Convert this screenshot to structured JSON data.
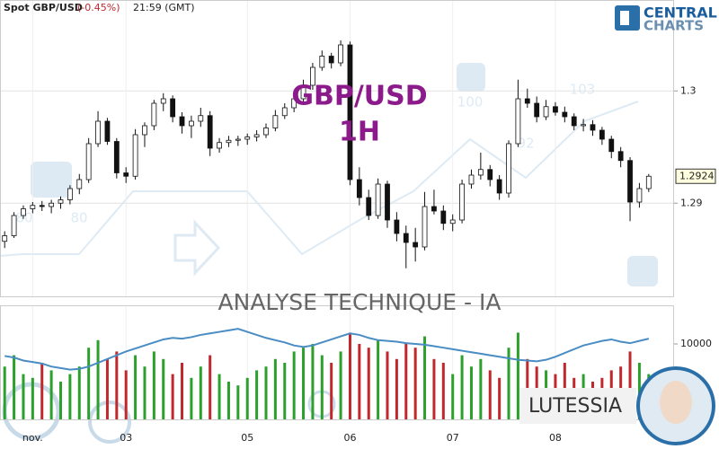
{
  "chart_data": {
    "type": "candlestick",
    "title": "Spot GBP/USD",
    "change": "(-0.45%)",
    "time": "21:59 (GMT)",
    "overlay_title": "GBP/USD",
    "timeframe": "1H",
    "subtitle": "ANALYSE TECHNIQUE - IA",
    "categories": [
      null,
      null,
      null,
      "nov.",
      null,
      null,
      null,
      null,
      null,
      null,
      null,
      null,
      null,
      "03",
      null,
      null,
      null,
      null,
      null,
      null,
      null,
      null,
      null,
      null,
      null,
      null,
      "05",
      null,
      null,
      null,
      null,
      null,
      null,
      null,
      null,
      null,
      null,
      "06",
      null,
      null,
      null,
      null,
      null,
      null,
      null,
      null,
      null,
      null,
      "07",
      null,
      null,
      null,
      null,
      null,
      null,
      null,
      null,
      null,
      null,
      "08",
      null,
      null,
      null,
      null,
      null,
      null,
      null,
      null,
      null,
      null
    ],
    "open": [
      1.2866,
      1.2871,
      1.2889,
      1.2895,
      1.2898,
      1.2897,
      1.29,
      1.2903,
      1.2913,
      1.2921,
      1.2953,
      1.2973,
      1.2955,
      1.2927,
      1.2924,
      1.2961,
      1.2969,
      1.2989,
      1.2993,
      1.2977,
      1.2969,
      1.2973,
      1.2978,
      1.2949,
      1.2954,
      1.2956,
      1.2957,
      1.2959,
      1.2961,
      1.2967,
      1.2978,
      1.2985,
      1.2993,
      1.3005,
      1.3021,
      1.3031,
      1.3025,
      1.3041,
      1.2921,
      1.2905,
      1.2889,
      1.2917,
      1.2885,
      1.2873,
      1.2865,
      1.2861,
      1.2897,
      1.2893,
      1.2882,
      1.2885,
      1.2917,
      1.2925,
      1.293,
      1.2921,
      1.2909,
      1.2953,
      1.2993,
      1.2989,
      1.2977,
      1.2986,
      1.2981,
      1.2977,
      1.2969,
      1.297,
      1.2965,
      1.2957,
      1.2946,
      1.2938,
      1.2901,
      1.2913
    ],
    "high": [
      1.2875,
      1.2892,
      1.2898,
      1.2901,
      1.2902,
      1.2903,
      1.2906,
      1.2916,
      1.2926,
      1.2958,
      1.2982,
      1.2976,
      1.2958,
      1.2932,
      1.2966,
      1.2972,
      1.2992,
      1.2998,
      1.2996,
      1.2981,
      1.2978,
      1.2985,
      1.2982,
      1.2958,
      1.296,
      1.296,
      1.2962,
      1.2965,
      1.2971,
      1.2983,
      1.2989,
      1.2996,
      1.301,
      1.3025,
      1.3036,
      1.3034,
      1.3045,
      1.3044,
      1.2932,
      1.2912,
      1.2922,
      1.292,
      1.2892,
      1.288,
      1.2878,
      1.291,
      1.2912,
      1.2898,
      1.289,
      1.2921,
      1.293,
      1.2945,
      1.2934,
      1.2925,
      1.2956,
      1.301,
      1.3002,
      1.2995,
      1.2992,
      1.299,
      1.2986,
      1.298,
      1.2975,
      1.2974,
      1.2968,
      1.296,
      1.295,
      1.2941,
      1.2918,
      1.2926
    ],
    "low": [
      1.286,
      1.2869,
      1.2886,
      1.2891,
      1.2893,
      1.2891,
      1.2895,
      1.2899,
      1.2908,
      1.2918,
      1.295,
      1.2952,
      1.2922,
      1.2918,
      1.2921,
      1.295,
      1.2965,
      1.2982,
      1.2972,
      1.2962,
      1.2958,
      1.2968,
      1.2942,
      1.2945,
      1.295,
      1.2951,
      1.2952,
      1.2955,
      1.2958,
      1.2964,
      1.2975,
      1.2981,
      1.299,
      1.3001,
      1.3018,
      1.302,
      1.3022,
      1.2916,
      1.2898,
      1.2885,
      1.2886,
      1.2878,
      1.2866,
      1.2842,
      1.2848,
      1.2858,
      1.289,
      1.2876,
      1.2875,
      1.2882,
      1.2913,
      1.2921,
      1.2915,
      1.2903,
      1.2905,
      1.295,
      1.2985,
      1.2972,
      1.2974,
      1.2978,
      1.2972,
      1.2965,
      1.2964,
      1.296,
      1.2952,
      1.294,
      1.2932,
      1.2884,
      1.2896,
      1.291
    ],
    "close": [
      1.2871,
      1.2889,
      1.2895,
      1.2898,
      1.2897,
      1.29,
      1.2903,
      1.2913,
      1.2921,
      1.2953,
      1.2973,
      1.2955,
      1.2927,
      1.2924,
      1.2961,
      1.2969,
      1.2989,
      1.2993,
      1.2977,
      1.2969,
      1.2973,
      1.2978,
      1.2949,
      1.2954,
      1.2956,
      1.2957,
      1.2959,
      1.2961,
      1.2967,
      1.2978,
      1.2985,
      1.2993,
      1.3005,
      1.3021,
      1.3031,
      1.3025,
      1.3041,
      1.2921,
      1.2905,
      1.2889,
      1.2917,
      1.2885,
      1.2873,
      1.2865,
      1.2861,
      1.2897,
      1.2893,
      1.2882,
      1.2885,
      1.2917,
      1.2925,
      1.293,
      1.2921,
      1.2909,
      1.2953,
      1.2993,
      1.2989,
      1.2977,
      1.2986,
      1.2981,
      1.2977,
      1.2969,
      1.297,
      1.2965,
      1.2957,
      1.2946,
      1.2938,
      1.2901,
      1.2913,
      1.2924
    ],
    "up_color": "#ffffff",
    "down_color": "#111111",
    "ylim": [
      1.2817,
      1.3081
    ],
    "yticks": [
      1.29,
      1.3
    ],
    "grid": true,
    "last_price": 1.2924,
    "volume": {
      "values": [
        7000,
        8500,
        6000,
        5500,
        7500,
        6500,
        5000,
        6000,
        7000,
        9500,
        10500,
        8000,
        9000,
        6500,
        8500,
        7000,
        9000,
        8000,
        6000,
        7500,
        5500,
        7000,
        8500,
        6000,
        5000,
        4500,
        5500,
        6500,
        7000,
        8000,
        7500,
        9000,
        9500,
        10000,
        8500,
        7500,
        9000,
        11500,
        10000,
        9500,
        10500,
        9000,
        8000,
        10000,
        9500,
        11000,
        8000,
        7500,
        6000,
        8500,
        7000,
        8000,
        6500,
        5500,
        9500,
        11500,
        8000,
        7000,
        6500,
        6000,
        7500,
        5500,
        6000,
        5000,
        5500,
        6500,
        7000,
        9000,
        7500,
        6000
      ],
      "line": [
        8400,
        8200,
        7800,
        7600,
        7400,
        7000,
        6800,
        6600,
        6700,
        7000,
        7500,
        8000,
        8500,
        9000,
        9400,
        9800,
        10200,
        10600,
        10800,
        10700,
        10900,
        11200,
        11400,
        11600,
        11800,
        12000,
        11600,
        11200,
        10800,
        10500,
        10200,
        9800,
        9600,
        9800,
        10200,
        10600,
        11000,
        11400,
        11200,
        10800,
        10500,
        10400,
        10300,
        10100,
        10000,
        9900,
        9700,
        9500,
        9300,
        9100,
        8900,
        8700,
        8500,
        8300,
        8100,
        7900,
        7800,
        7700,
        7900,
        8300,
        8800,
        9300,
        9800,
        10100,
        10400,
        10600,
        10300,
        10100,
        10400,
        10700
      ],
      "up_color": "#2ca02c",
      "down_color": "#c0282d",
      "line_color": "#4a8cc4",
      "ylim": [
        0,
        15000
      ],
      "yticks": [
        10000
      ]
    }
  },
  "brand": {
    "logo": [
      "CENTRAL",
      "CHARTS"
    ],
    "badge": "LUTESSIA"
  },
  "watermark": {
    "labels": [
      "80",
      "80",
      "100",
      "92",
      "103"
    ]
  }
}
